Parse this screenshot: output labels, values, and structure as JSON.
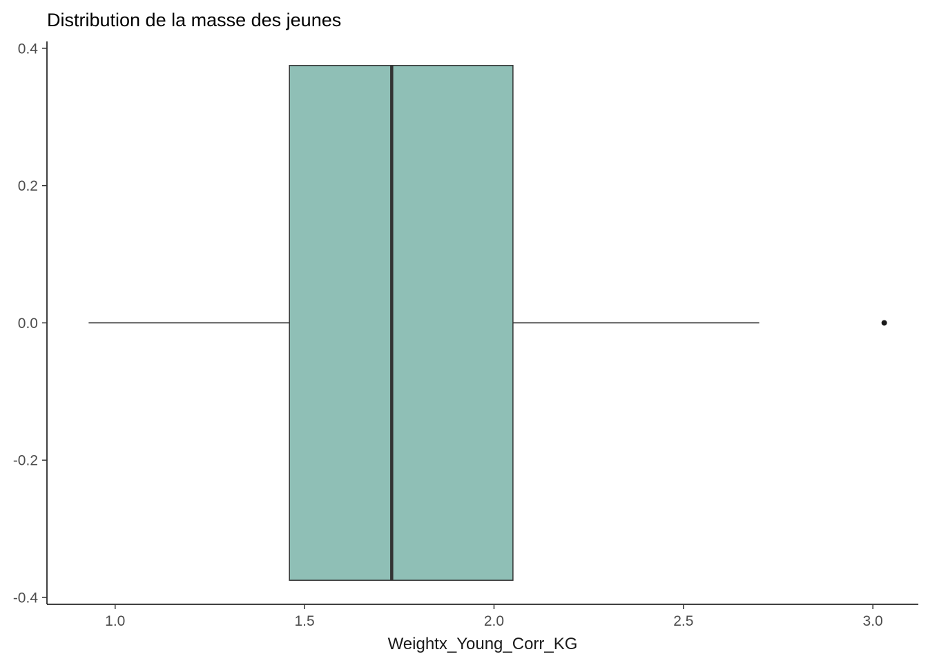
{
  "title": "Distribution de la masse des jeunes",
  "xlabel": "Weightx_Young_Corr_KG",
  "colors": {
    "background": "#FFFFFF",
    "box_fill": "#8FBFB6",
    "box_stroke": "#333333",
    "median": "#333333",
    "whisker": "#1A1A1A",
    "axis_line": "#000000",
    "tick_mark": "#333333",
    "tick_label": "#4D4D4D",
    "outlier": "#1A1A1A"
  },
  "chart_data": {
    "type": "boxplot",
    "orientation": "horizontal",
    "title": "Distribution de la masse des jeunes",
    "xlabel": "Weightx_Young_Corr_KG",
    "ylabel": "",
    "series": [
      {
        "name": "Weightx_Young_Corr_KG",
        "whisker_min": 0.93,
        "q1": 1.46,
        "median": 1.73,
        "q3": 2.05,
        "whisker_max": 2.7,
        "outliers": [
          3.03
        ],
        "center_y": 0,
        "box_half_height": 0.375
      }
    ],
    "x_ticks": [
      1.0,
      1.5,
      2.0,
      2.5,
      3.0
    ],
    "x_tick_labels": [
      "1.0",
      "1.5",
      "2.0",
      "2.5",
      "3.0"
    ],
    "y_ticks": [
      -0.4,
      -0.2,
      0.0,
      0.2,
      0.4
    ],
    "y_tick_labels": [
      "-0.4",
      "-0.2",
      "0.0",
      "0.2",
      "0.4"
    ],
    "xlim": [
      0.82,
      3.12
    ],
    "ylim": [
      -0.41,
      0.41
    ],
    "grid": false,
    "legend": null
  }
}
